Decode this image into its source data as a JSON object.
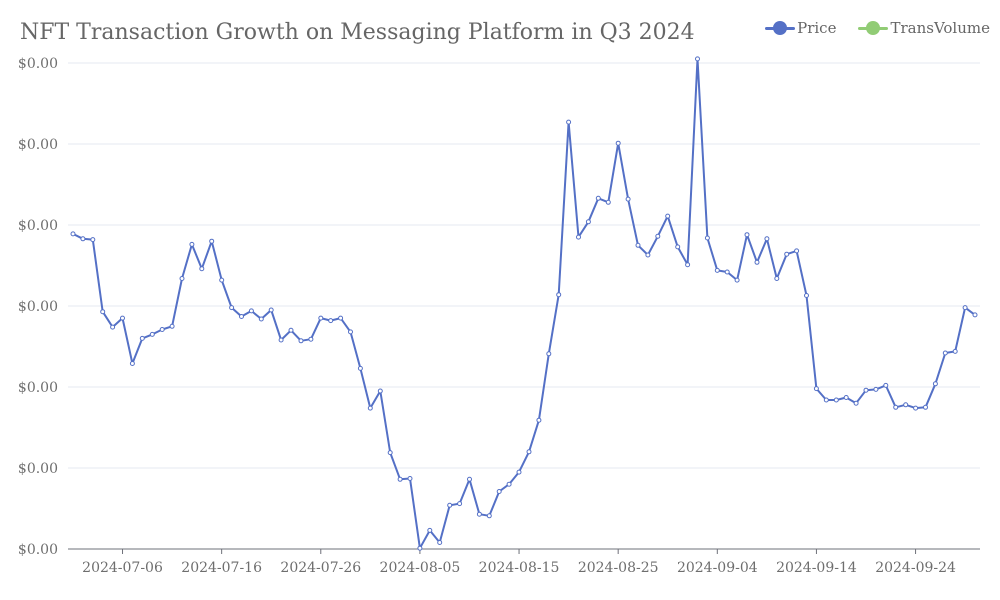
{
  "chart_data": {
    "type": "line",
    "title": "NFT Transaction Growth on Messaging Platform in Q3 2024",
    "legend": {
      "position": "top-right"
    },
    "series": [
      {
        "name": "Price",
        "color": "#5470c6"
      },
      {
        "name": "TransVolume",
        "color": "#91cc75"
      }
    ],
    "y_tick_labels": [
      "$0.00",
      "$0.00",
      "$0.00",
      "$0.00",
      "$0.00",
      "$0.00",
      "$0.00"
    ],
    "x_tick_labels": [
      "2024-07-06",
      "2024-07-16",
      "2024-07-26",
      "2024-08-05",
      "2024-08-15",
      "2024-08-25",
      "2024-09-04",
      "2024-09-14",
      "2024-09-24"
    ],
    "x_start": "2024-07-01",
    "x_end": "2024-09-30",
    "ylim": [
      0,
      6
    ],
    "grid": true,
    "price_values": [
      3.89,
      3.83,
      3.82,
      2.93,
      2.74,
      2.85,
      2.29,
      2.6,
      2.65,
      2.71,
      2.75,
      3.34,
      3.76,
      3.46,
      3.8,
      3.32,
      2.98,
      2.87,
      2.94,
      2.84,
      2.95,
      2.58,
      2.7,
      2.57,
      2.59,
      2.85,
      2.82,
      2.85,
      2.68,
      2.23,
      1.74,
      1.95,
      1.19,
      0.86,
      0.87,
      0.01,
      0.23,
      0.08,
      0.54,
      0.56,
      0.86,
      0.43,
      0.41,
      0.71,
      0.8,
      0.95,
      1.2,
      1.59,
      2.41,
      3.14,
      5.27,
      3.85,
      4.04,
      4.33,
      4.28,
      5.01,
      4.32,
      3.75,
      3.63,
      3.86,
      4.11,
      3.73,
      3.51,
      6.05,
      3.84,
      3.44,
      3.42,
      3.32,
      3.88,
      3.54,
      3.83,
      3.34,
      3.64,
      3.68,
      3.13,
      1.98,
      1.84,
      1.84,
      1.87,
      1.8,
      1.96,
      1.97,
      2.02,
      1.75,
      1.78,
      1.74,
      1.75,
      2.04,
      2.42,
      2.44,
      2.98,
      2.89
    ]
  }
}
